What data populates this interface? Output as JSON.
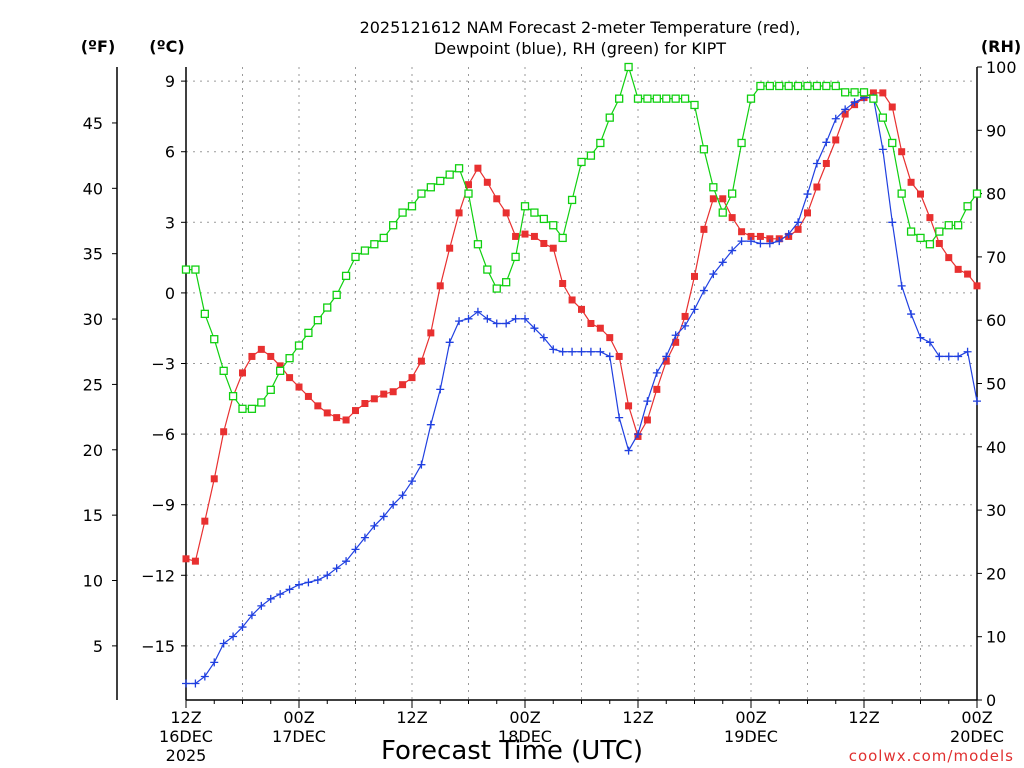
{
  "chart_data": {
    "type": "line",
    "title_line1": "2025121612 NAM Forecast 2-meter Temperature (red),",
    "title_line2": "Dewpoint (blue), RH (green) for KIPT",
    "xlabel": "Forecast Time (UTC)",
    "credit": "coolwx.com/models",
    "unit_left_f": "(ºF)",
    "unit_left_c": "(ºC)",
    "unit_right": "(RH)",
    "x_range_hours": [
      0,
      84
    ],
    "x_ticks": [
      {
        "hour": 0,
        "lines": [
          "12Z",
          "16DEC",
          "2025"
        ]
      },
      {
        "hour": 12,
        "lines": [
          "00Z",
          "17DEC"
        ]
      },
      {
        "hour": 24,
        "lines": [
          "12Z"
        ]
      },
      {
        "hour": 36,
        "lines": [
          "00Z",
          "18DEC"
        ]
      },
      {
        "hour": 48,
        "lines": [
          "12Z"
        ]
      },
      {
        "hour": 60,
        "lines": [
          "00Z",
          "19DEC"
        ]
      },
      {
        "hour": 72,
        "lines": [
          "12Z"
        ]
      },
      {
        "hour": 84,
        "lines": [
          "00Z",
          "20DEC"
        ]
      }
    ],
    "y_celsius": {
      "range": [
        -17.3,
        9.6
      ],
      "ticks": [
        9,
        6,
        3,
        0,
        -3,
        -6,
        -9,
        -12,
        -15
      ],
      "tick_labels": [
        "9",
        "6",
        "3",
        "0",
        "−3",
        "−6",
        "−9",
        "−12",
        "−15"
      ]
    },
    "y_fahrenheit": {
      "ticks": [
        45,
        40,
        35,
        30,
        25,
        20,
        15,
        10,
        5
      ],
      "tick_labels": [
        "45",
        "40",
        "35",
        "30",
        "25",
        "20",
        "15",
        "10",
        "5"
      ]
    },
    "y_rh": {
      "range": [
        0,
        100
      ],
      "ticks": [
        100,
        90,
        80,
        70,
        60,
        50,
        40,
        30,
        20,
        10,
        0
      ],
      "tick_labels": [
        "100",
        "90",
        "80",
        "70",
        "60",
        "50",
        "40",
        "30",
        "20",
        "10",
        "0"
      ]
    },
    "series": [
      {
        "name": "2-meter Temperature",
        "unit": "C",
        "color": "#e83030",
        "marker": "filled-square",
        "hours": [
          0,
          1,
          2,
          3,
          4,
          5,
          6,
          7,
          8,
          9,
          10,
          11,
          12,
          13,
          14,
          15,
          16,
          17,
          18,
          19,
          20,
          21,
          22,
          23,
          24,
          25,
          26,
          27,
          28,
          29,
          30,
          31,
          32,
          33,
          34,
          35,
          36,
          37,
          38,
          39,
          40,
          41,
          42,
          43,
          44,
          45,
          46,
          47,
          48,
          49,
          50,
          51,
          52,
          53,
          54,
          55,
          56,
          57,
          58,
          59,
          60,
          61,
          62,
          63,
          64,
          65,
          66,
          67,
          68,
          69,
          70,
          71,
          72,
          73,
          74,
          75,
          76,
          77,
          78,
          79,
          80,
          81,
          82,
          83,
          84
        ],
        "values": [
          -11.3,
          -11.4,
          -9.7,
          -7.9,
          -5.9,
          -4.4,
          -3.4,
          -2.7,
          -2.4,
          -2.7,
          -3.1,
          -3.6,
          -4.0,
          -4.4,
          -4.8,
          -5.1,
          -5.3,
          -5.4,
          -5.0,
          -4.7,
          -4.5,
          -4.3,
          -4.2,
          -3.9,
          -3.6,
          -2.9,
          -1.7,
          0.3,
          1.9,
          3.4,
          4.6,
          5.3,
          4.7,
          4.0,
          3.4,
          2.4,
          2.5,
          2.4,
          2.1,
          1.9,
          0.4,
          -0.3,
          -0.7,
          -1.3,
          -1.5,
          -1.9,
          -2.7,
          -4.8,
          -6.1,
          -5.4,
          -4.1,
          -2.9,
          -2.1,
          -1.0,
          0.7,
          2.7,
          4.0,
          4.0,
          3.2,
          2.6,
          2.4,
          2.4,
          2.3,
          2.3,
          2.4,
          2.7,
          3.4,
          4.5,
          5.5,
          6.5,
          7.6,
          8.0,
          8.3,
          8.5,
          8.5,
          7.9,
          6.0,
          4.7,
          4.2,
          3.2,
          2.1,
          1.5,
          1.0,
          0.8,
          0.3
        ]
      },
      {
        "name": "Dewpoint",
        "unit": "C",
        "color": "#2040e0",
        "marker": "plus",
        "hours": [
          0,
          1,
          2,
          3,
          4,
          5,
          6,
          7,
          8,
          9,
          10,
          11,
          12,
          13,
          14,
          15,
          16,
          17,
          18,
          19,
          20,
          21,
          22,
          23,
          24,
          25,
          26,
          27,
          28,
          29,
          30,
          31,
          32,
          33,
          34,
          35,
          36,
          37,
          38,
          39,
          40,
          41,
          42,
          43,
          44,
          45,
          46,
          47,
          48,
          49,
          50,
          51,
          52,
          53,
          54,
          55,
          56,
          57,
          58,
          59,
          60,
          61,
          62,
          63,
          64,
          65,
          66,
          67,
          68,
          69,
          70,
          71,
          72,
          73,
          74,
          75,
          76,
          77,
          78,
          79,
          80,
          81,
          82,
          83,
          84
        ],
        "values": [
          -16.6,
          -16.6,
          -16.3,
          -15.7,
          -14.9,
          -14.6,
          -14.2,
          -13.7,
          -13.3,
          -13.0,
          -12.8,
          -12.6,
          -12.4,
          -12.3,
          -12.2,
          -12.0,
          -11.7,
          -11.4,
          -10.9,
          -10.4,
          -9.9,
          -9.5,
          -9.0,
          -8.6,
          -8.0,
          -7.3,
          -5.6,
          -4.1,
          -2.1,
          -1.2,
          -1.1,
          -0.8,
          -1.1,
          -1.3,
          -1.3,
          -1.1,
          -1.1,
          -1.5,
          -1.9,
          -2.4,
          -2.5,
          -2.5,
          -2.5,
          -2.5,
          -2.5,
          -2.7,
          -5.3,
          -6.7,
          -6.0,
          -4.6,
          -3.4,
          -2.7,
          -1.8,
          -1.4,
          -0.7,
          0.1,
          0.8,
          1.3,
          1.8,
          2.2,
          2.2,
          2.1,
          2.1,
          2.2,
          2.5,
          3.0,
          4.2,
          5.5,
          6.4,
          7.4,
          7.8,
          8.1,
          8.3,
          8.3,
          6.1,
          3.0,
          0.3,
          -0.9,
          -1.9,
          -2.1,
          -2.7,
          -2.7,
          -2.7,
          -2.5,
          -4.6
        ]
      },
      {
        "name": "RH",
        "unit": "%",
        "color": "#10d010",
        "marker": "open-square",
        "hours": [
          0,
          1,
          2,
          3,
          4,
          5,
          6,
          7,
          8,
          9,
          10,
          11,
          12,
          13,
          14,
          15,
          16,
          17,
          18,
          19,
          20,
          21,
          22,
          23,
          24,
          25,
          26,
          27,
          28,
          29,
          30,
          31,
          32,
          33,
          34,
          35,
          36,
          37,
          38,
          39,
          40,
          41,
          42,
          43,
          44,
          45,
          46,
          47,
          48,
          49,
          50,
          51,
          52,
          53,
          54,
          55,
          56,
          57,
          58,
          59,
          60,
          61,
          62,
          63,
          64,
          65,
          66,
          67,
          68,
          69,
          70,
          71,
          72,
          73,
          74,
          75,
          76,
          77,
          78,
          79,
          80,
          81,
          82,
          83,
          84
        ],
        "values": [
          68,
          68,
          61,
          57,
          52,
          48,
          46,
          46,
          47,
          49,
          52,
          54,
          56,
          58,
          60,
          62,
          64,
          67,
          70,
          71,
          72,
          73,
          75,
          77,
          78,
          80,
          81,
          82,
          83,
          84,
          80,
          72,
          68,
          65,
          66,
          70,
          78,
          77,
          76,
          75,
          73,
          79,
          85,
          86,
          88,
          92,
          95,
          100,
          95,
          95,
          95,
          95,
          95,
          95,
          94,
          87,
          81,
          77,
          80,
          88,
          95,
          97,
          97,
          97,
          97,
          97,
          97,
          97,
          97,
          97,
          96,
          96,
          96,
          95,
          92,
          88,
          80,
          74,
          73,
          72,
          74,
          75,
          75,
          78,
          80
        ]
      }
    ]
  }
}
